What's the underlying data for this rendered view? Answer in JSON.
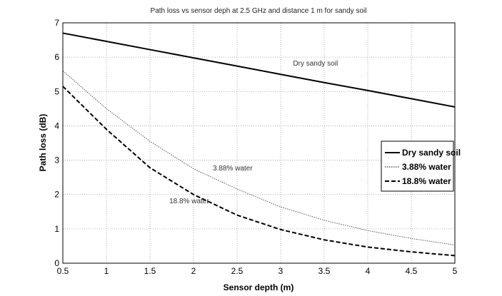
{
  "chart_data": {
    "type": "line",
    "title": "Path loss vs sensor deph at 2.5 GHz and distance 1 m for sandy soil",
    "xlabel": "Sensor depth (m)",
    "ylabel": "Path loss (dB)",
    "xlim": [
      0.5,
      5
    ],
    "ylim": [
      0,
      7
    ],
    "grid": true,
    "x_ticks": [
      "0.5",
      "1",
      "1.5",
      "2",
      "2.5",
      "3",
      "3.5",
      "4",
      "4.5",
      "5"
    ],
    "y_ticks": [
      "0",
      "1",
      "2",
      "3",
      "4",
      "5",
      "6",
      "7"
    ],
    "x": [
      0.5,
      1,
      1.5,
      2,
      2.5,
      3,
      3.5,
      4,
      4.5,
      5
    ],
    "series": [
      {
        "name": "Dry sandy soil",
        "style": "solid",
        "values": [
          6.7,
          6.46,
          6.22,
          5.98,
          5.74,
          5.5,
          5.26,
          5.03,
          4.79,
          4.55
        ]
      },
      {
        "name": "3.88% water",
        "style": "dotted",
        "values": [
          5.6,
          4.5,
          3.55,
          2.75,
          2.16,
          1.64,
          1.25,
          0.95,
          0.72,
          0.53
        ]
      },
      {
        "name": "18.8% water",
        "style": "dashed",
        "values": [
          5.15,
          3.9,
          2.78,
          2.0,
          1.4,
          0.98,
          0.68,
          0.47,
          0.33,
          0.22
        ]
      }
    ],
    "annotations": [
      {
        "text": "Dry sandy soil",
        "x": 3.4,
        "y": 5.75
      },
      {
        "text": "3.88% water",
        "x": 2.45,
        "y": 2.7
      },
      {
        "text": "18.8% water",
        "x": 1.95,
        "y": 1.75
      }
    ],
    "legend_position": "right"
  }
}
